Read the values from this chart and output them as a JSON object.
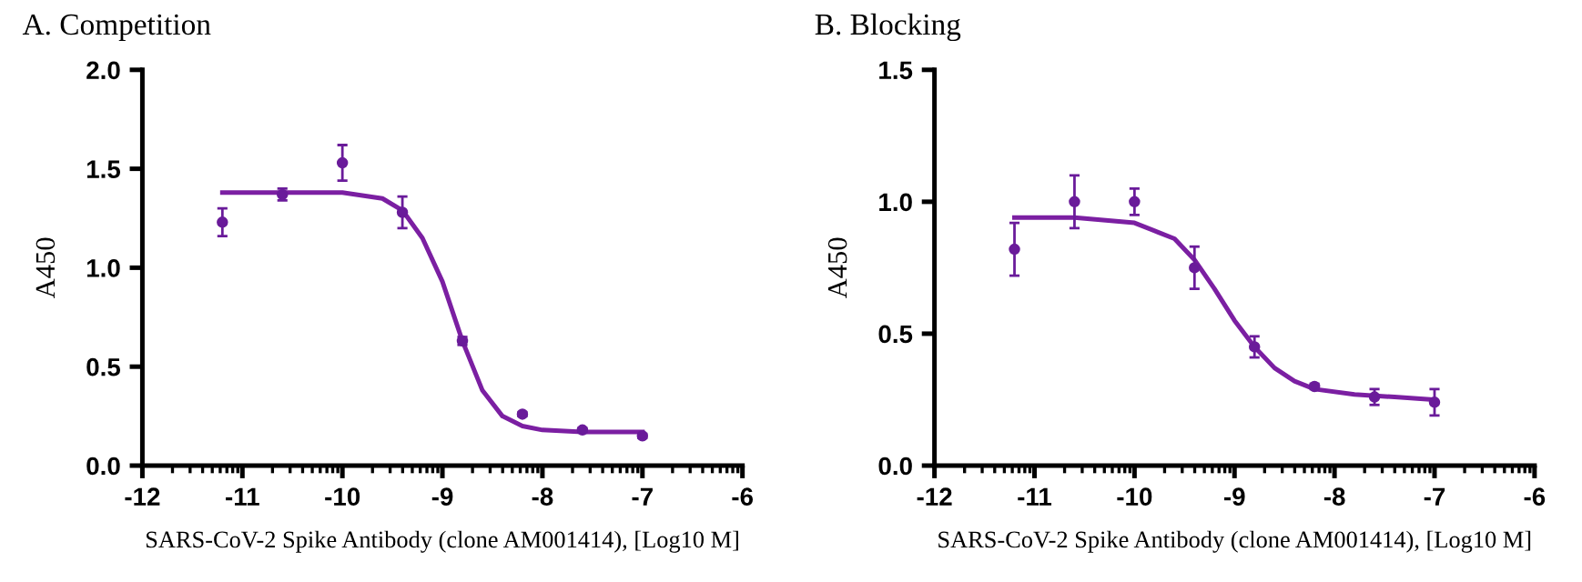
{
  "chart_data": [
    {
      "type": "scatter",
      "title": "A. Competition",
      "xlabel": "SARS-CoV-2 Spike Antibody (clone AM001414), [Log10 M]",
      "ylabel": "A450",
      "xlim": [
        -12,
        -6
      ],
      "xticks": [
        -12,
        -11,
        -10,
        -9,
        -8,
        -7,
        -6
      ],
      "ylim": [
        0,
        2
      ],
      "yticks": [
        {
          "value": 0,
          "label": "0.0"
        },
        {
          "value": 0.5,
          "label": "0.5"
        },
        {
          "value": 1,
          "label": "1.0"
        },
        {
          "value": 1.5,
          "label": "1.5"
        },
        {
          "value": 2,
          "label": "2.0"
        }
      ],
      "grid": false,
      "legend": false,
      "series": [
        {
          "color": "#6a1b9a",
          "marker": "circle",
          "x": [
            -11.2,
            -10.6,
            -10,
            -9.4,
            -8.8,
            -8.2,
            -7.6,
            -7
          ],
          "values": [
            1.23,
            1.37,
            1.53,
            1.28,
            0.63,
            0.26,
            0.18,
            0.15
          ],
          "errors": [
            0.07,
            0.03,
            0.09,
            0.08,
            0.02,
            0.01,
            0.01,
            0.01
          ]
        },
        {
          "type": "line",
          "marker": "none",
          "color": "#7b1fa2",
          "x": [
            -11.2,
            -10,
            -9.6,
            -9.4,
            -9.2,
            -9.0,
            -8.8,
            -8.6,
            -8.4,
            -8.2,
            -8.0,
            -7.6,
            -7
          ],
          "values": [
            1.38,
            1.38,
            1.35,
            1.29,
            1.15,
            0.93,
            0.63,
            0.38,
            0.25,
            0.2,
            0.18,
            0.17,
            0.17
          ]
        }
      ]
    },
    {
      "type": "scatter",
      "title": "B. Blocking",
      "xlabel": "SARS-CoV-2 Spike Antibody (clone AM001414), [Log10 M]",
      "ylabel": "A450",
      "xlim": [
        -12,
        -6
      ],
      "xticks": [
        -12,
        -11,
        -10,
        -9,
        -8,
        -7,
        -6
      ],
      "ylim": [
        0,
        1.5
      ],
      "yticks": [
        {
          "value": 0,
          "label": "0.0"
        },
        {
          "value": 0.5,
          "label": "0.5"
        },
        {
          "value": 1,
          "label": "1.0"
        },
        {
          "value": 1.5,
          "label": "1.5"
        }
      ],
      "grid": false,
      "legend": false,
      "series": [
        {
          "color": "#6a1b9a",
          "marker": "circle",
          "x": [
            -11.2,
            -10.6,
            -10,
            -9.4,
            -8.8,
            -8.2,
            -7.6,
            -7
          ],
          "values": [
            0.82,
            1.0,
            1.0,
            0.75,
            0.45,
            0.3,
            0.26,
            0.24
          ],
          "errors": [
            0.1,
            0.1,
            0.05,
            0.08,
            0.04,
            0.01,
            0.03,
            0.05
          ]
        },
        {
          "type": "line",
          "marker": "none",
          "color": "#7b1fa2",
          "x": [
            -11.2,
            -10.6,
            -10,
            -9.6,
            -9.4,
            -9.2,
            -9.0,
            -8.8,
            -8.6,
            -8.4,
            -8.2,
            -7.8,
            -7.4,
            -7
          ],
          "values": [
            0.94,
            0.94,
            0.92,
            0.86,
            0.78,
            0.67,
            0.55,
            0.45,
            0.37,
            0.32,
            0.29,
            0.27,
            0.26,
            0.25
          ]
        }
      ]
    }
  ]
}
